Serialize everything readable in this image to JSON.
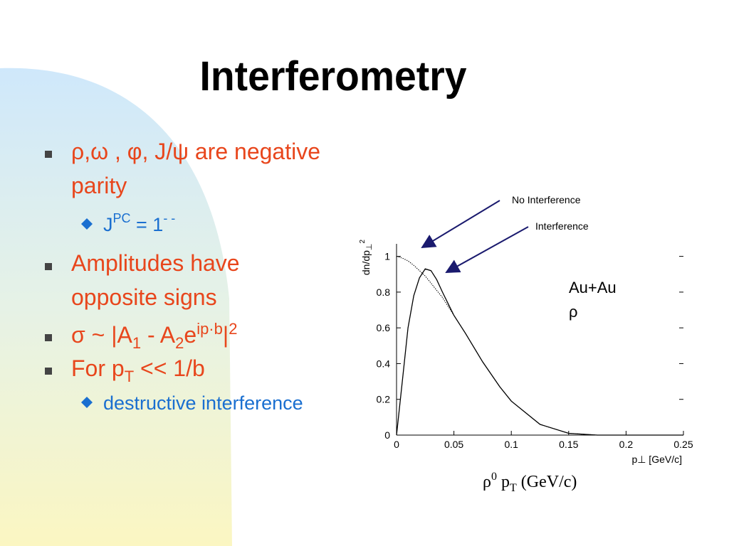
{
  "slide": {
    "title": "Interferometry",
    "bullets": [
      {
        "lines": [
          "ρ,ω , φ, J/ψ are negative",
          "parity"
        ]
      },
      {
        "parts": [
          "J",
          "PC",
          " = 1",
          "- -"
        ]
      },
      {
        "lines": [
          "Amplitudes have",
          "opposite signs"
        ]
      },
      {
        "parts": [
          "σ ~ |A",
          "1",
          " - A",
          "2",
          "e",
          "ip·b",
          "|",
          "2"
        ]
      },
      {
        "parts": [
          "For p",
          "T",
          " << 1/b"
        ]
      },
      {
        "lines": [
          "destructive interference"
        ]
      }
    ],
    "caption": [
      "ρ",
      "0",
      " p",
      "T",
      " (GeV/c)"
    ]
  },
  "chart_data": {
    "type": "line",
    "x_label": "p⊥ [GeV/c]",
    "y_label": [
      "dn/dp",
      "⊥",
      "2"
    ],
    "annotations": [
      "Au+Au",
      "ρ"
    ],
    "x": [
      0,
      0.005,
      0.01,
      0.015,
      0.02,
      0.025,
      0.03,
      0.035,
      0.04,
      0.05,
      0.06,
      0.075,
      0.09,
      0.1,
      0.125,
      0.15,
      0.175,
      0.2,
      0.25
    ],
    "series": [
      {
        "name": "No Interference",
        "color": "#000000",
        "dash": "dotted",
        "values": [
          1,
          0.99,
          0.975,
          0.95,
          0.92,
          0.89,
          0.85,
          0.81,
          0.77,
          0.67,
          0.57,
          0.41,
          0.27,
          0.19,
          0.06,
          0.01,
          0,
          0,
          0
        ]
      },
      {
        "name": "Interference",
        "color": "#000000",
        "dash": "solid",
        "values": [
          0,
          0.3,
          0.6,
          0.78,
          0.88,
          0.93,
          0.92,
          0.87,
          0.8,
          0.67,
          0.57,
          0.41,
          0.27,
          0.19,
          0.06,
          0.01,
          0,
          0,
          0
        ]
      }
    ],
    "xlim": [
      0,
      0.25
    ],
    "ylim": [
      0,
      1.07
    ],
    "xticks": [
      0,
      0.05,
      0.1,
      0.15,
      0.2,
      0.25
    ],
    "yticks": [
      0,
      0.2,
      0.4,
      0.6,
      0.8,
      1
    ]
  }
}
